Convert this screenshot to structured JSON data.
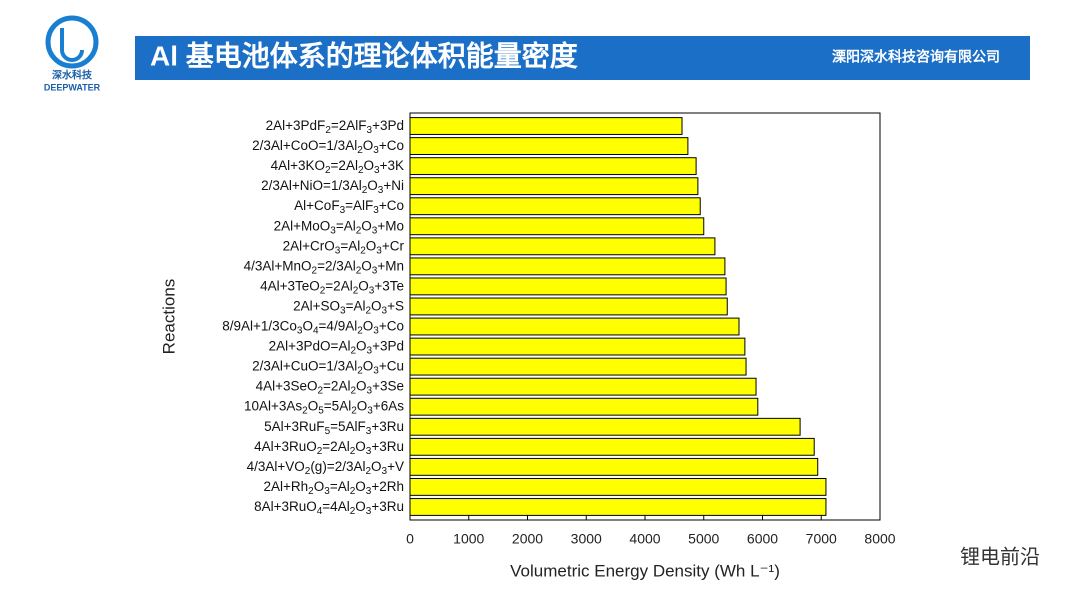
{
  "header": {
    "title": "Al 基电池体系的理论体积能量密度",
    "company": "溧阳深水科技咨询有限公司",
    "logo_cn": "深水科技",
    "logo_en": "DEEPWATER"
  },
  "watermark": "锂电前沿",
  "chart_data": {
    "type": "hbar",
    "categories": [
      "2Al+3PdF2=2AlF3+3Pd",
      "2/3Al+CoO=1/3Al2O3+Co",
      "4Al+3KO2=2Al2O3+3K",
      "2/3Al+NiO=1/3Al2O3+Ni",
      "Al+CoF3=AlF3+Co",
      "2Al+MoO3=Al2O3+Mo",
      "2Al+CrO3=Al2O3+Cr",
      "4/3Al+MnO2=2/3Al2O3+Mn",
      "4Al+3TeO2=2Al2O3+3Te",
      "2Al+SO3=Al2O3+S",
      "8/9Al+1/3Co3O4=4/9Al2O3+Co",
      "2Al+3PdO=Al2O3+3Pd",
      "2/3Al+CuO=1/3Al2O3+Cu",
      "4Al+3SeO2=2Al2O3+3Se",
      "10Al+3As2O5=5Al2O3+6As",
      "5Al+3RuF5=5AlF3+3Ru",
      "4Al+3RuO2=2Al2O3+3Ru",
      "4/3Al+VO2(g)=2/3Al2O3+V",
      "2Al+Rh2O3=Al2O3+2Rh",
      "8Al+3RuO4=4Al2O3+3Ru"
    ],
    "values": [
      4630,
      4730,
      4870,
      4900,
      4940,
      5000,
      5190,
      5360,
      5380,
      5400,
      5600,
      5700,
      5720,
      5890,
      5920,
      6640,
      6880,
      6940,
      7080,
      7080
    ],
    "color": "#ffff00",
    "xlabel": "Volumetric Energy Density (Wh L⁻¹)",
    "ylabel": "Reactions",
    "xlim": [
      0,
      8000
    ],
    "xticks": [
      0,
      1000,
      2000,
      3000,
      4000,
      5000,
      6000,
      7000,
      8000
    ]
  }
}
